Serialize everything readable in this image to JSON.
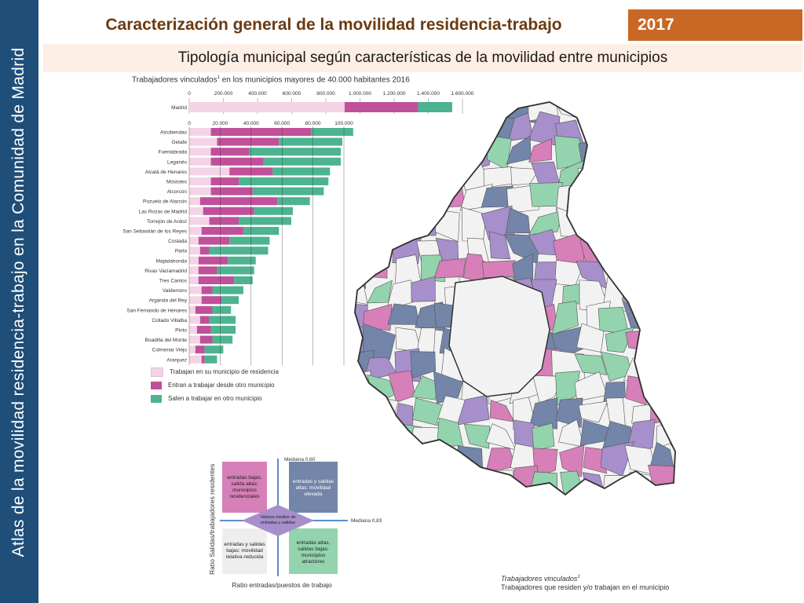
{
  "side_title": "Atlas de la movilidad residencia-trabajo en la Comunidad de Madrid",
  "header": {
    "title": "Caracterización general de la movilidad residencia-trabajo",
    "year": "2017",
    "subtitle": "Tipología municipal según características de la movilidad entre municipios"
  },
  "colors": {
    "side_band": "#1f4e79",
    "year_box": "#c86824",
    "title_text": "#6b3a10",
    "subtitle_bg": "#fdeee6",
    "series_light_pink": "#f3d3e6",
    "series_magenta": "#c0509a",
    "series_teal": "#4db391",
    "map_pink": "#d67fb8",
    "map_purple": "#a68fca",
    "map_slate": "#7385a8",
    "map_green": "#93d3ad",
    "map_white": "#f2f2f2"
  },
  "chart_data": {
    "type": "bar",
    "stacked": true,
    "orientation": "horizontal",
    "title": "Trabajadores vinculados",
    "title_sup": "1",
    "title_suffix": "en los municipios mayores de 40.000 habitantes 2016",
    "madrid_axis": {
      "ticks": [
        "0",
        "200.000",
        "400.000",
        "600.000",
        "800.000",
        "1.000.000",
        "1.200.000",
        "1.400.000",
        "1.600.000"
      ],
      "range": [
        0,
        1600000
      ]
    },
    "others_axis": {
      "ticks": [
        "0",
        "20.000",
        "40.000",
        "60.000",
        "80.000",
        "100.000"
      ],
      "range": [
        0,
        100000
      ]
    },
    "series": [
      {
        "name": "Trabajan en su municipio de residencia"
      },
      {
        "name": "Entran a trabajar desde otro municipio"
      },
      {
        "name": "Salen a trabajar en otro municipio"
      }
    ],
    "madrid": {
      "category": "Madrid",
      "values": [
        910000,
        430000,
        200000
      ]
    },
    "categories": [
      "Alcobendas",
      "Getafe",
      "Fuenlabrada",
      "Leganés",
      "Alcalá de Henares",
      "Móstoles",
      "Alcorcón",
      "Pozuelo de Alarcón",
      "Las Rozas de Madrid",
      "Torrejón de Ardoz",
      "San Sebastián de los Reyes",
      "Coslada",
      "Parla",
      "Majadahonda",
      "Rivas Vaciamadrid",
      "Tres Cantos",
      "Valdemoro",
      "Arganda del Rey",
      "San Fernando de Henares",
      "Collado Villalba",
      "Pinto",
      "Boadilla del Monte",
      "Colmenar Viejo",
      "Aranjuez"
    ],
    "values": [
      [
        14000,
        65000,
        27000
      ],
      [
        18000,
        40000,
        41000
      ],
      [
        14000,
        25000,
        59000
      ],
      [
        14000,
        34000,
        50000
      ],
      [
        26000,
        28000,
        37000
      ],
      [
        14000,
        18000,
        58000
      ],
      [
        14000,
        27000,
        46000
      ],
      [
        7000,
        50000,
        21000
      ],
      [
        9000,
        33000,
        25000
      ],
      [
        13000,
        19000,
        34000
      ],
      [
        8000,
        27000,
        23000
      ],
      [
        6000,
        20000,
        26000
      ],
      [
        7000,
        6000,
        38000
      ],
      [
        6000,
        19000,
        18000
      ],
      [
        6000,
        12000,
        24000
      ],
      [
        6000,
        23000,
        12000
      ],
      [
        8000,
        7000,
        20000
      ],
      [
        8000,
        13000,
        11000
      ],
      [
        4000,
        11000,
        12000
      ],
      [
        7000,
        6000,
        17000
      ],
      [
        5000,
        9000,
        16000
      ],
      [
        7000,
        8000,
        13000
      ],
      [
        4000,
        6000,
        12000
      ],
      [
        8000,
        2000,
        8000
      ]
    ]
  },
  "quadrant": {
    "ylabel": "Ratio Salidas/trabajadores residentes",
    "xlabel": "Ratio entradas/puestos de trabajo",
    "median_v": "Mediana 0,60",
    "median_h": "Mediana 0,83",
    "tl": "entradas bajas, salida altas: municipios residenciales",
    "tr": "entradas y salidas altas: movilidad elevada",
    "bl": "entradas y salidas bajas: movilidad relativa reducida",
    "br": "entradas altas, salidas bajas: municipios atractores",
    "center": "Valores medios de entradas y salidas"
  },
  "footnote": {
    "line1": "Trabajadores vinculados",
    "sup": "1",
    "line2": "Trabajadores que residen y/o trabajan en el municipio"
  }
}
